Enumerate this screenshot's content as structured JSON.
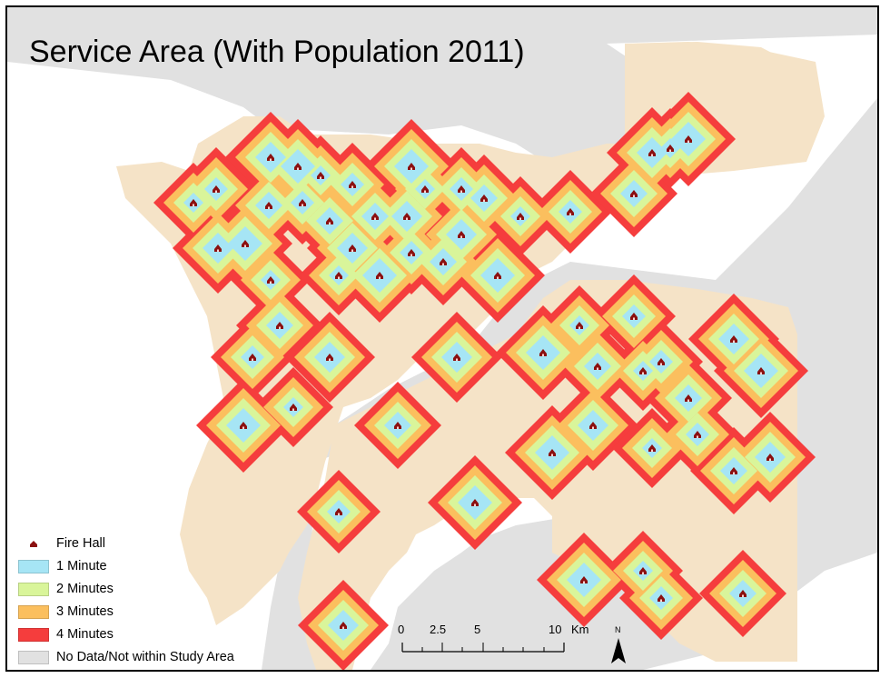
{
  "title": "Service Area (With Population 2011)",
  "colors": {
    "water": "#ffffff",
    "no_data": "#e1e1e1",
    "land": "#f5e3c7",
    "min1": "#a6e5f5",
    "min2": "#d9f59a",
    "min3": "#fbbf5e",
    "min4": "#f53d3d",
    "fire_hall": "#8b1010"
  },
  "legend": {
    "fire_hall": "Fire Hall",
    "min1": "1 Minute",
    "min2": "2 Minutes",
    "min3": "3 Minutes",
    "min4": "4 Minutes",
    "no_data": "No Data/Not within Study Area"
  },
  "scale": {
    "ticks": [
      "0",
      "2.5",
      "5",
      "10"
    ],
    "unit": "Km"
  },
  "north_label": "N",
  "icons": {
    "fire_hall": "house-icon",
    "north": "north-arrow-icon"
  },
  "fire_halls": [
    {
      "r": 38,
      "big": 24
    },
    {
      "r": 40,
      "big": 22
    },
    {
      "r": 42,
      "big": 30
    },
    {
      "r": 36,
      "big": 26
    },
    {
      "r": 40,
      "big": 28
    },
    {
      "r": 38,
      "big": 24
    }
  ]
}
